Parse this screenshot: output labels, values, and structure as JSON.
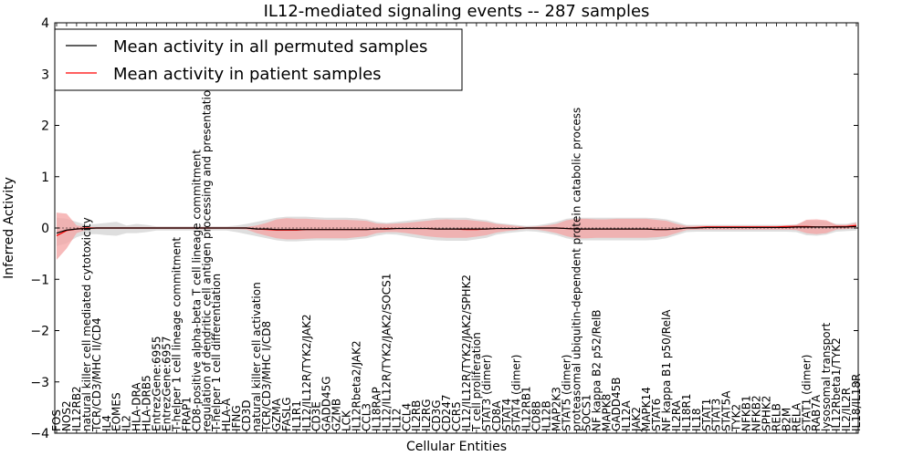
{
  "chart_data": {
    "type": "line",
    "title": "IL12-mediated signaling events -- 287 samples",
    "xlabel": "Cellular Entities",
    "ylabel": "Inferred Activity",
    "ylim": [
      -4,
      4
    ],
    "yticks": [
      -4,
      -3,
      -2,
      -1,
      0,
      1,
      2,
      3,
      4
    ],
    "legend": {
      "placement": "top-left",
      "entries": [
        {
          "label": "Mean activity in all permuted samples",
          "color": "#000000"
        },
        {
          "label": "Mean activity in patient samples",
          "color": "#ff0000"
        }
      ]
    },
    "colors": {
      "permuted_line": "#000000",
      "patient_line": "#ff0000",
      "patient_band": "#f4a3a3",
      "permuted_band": "#c8c8c8"
    },
    "categories": [
      "FOS",
      "NOS2",
      "IL12RB2",
      "natural killer cell mediated cytotoxicity",
      "TCR/CD3/MHC II/CD4",
      "IL4",
      "EOMES",
      "IL2",
      "HLA-DRA",
      "HLA-DRB5",
      "EntrezGene:6955",
      "EntrezGene:6957",
      "T-helper 1 cell lineage commitment",
      "FRAP1",
      "CD8-positive alpha-beta T cell lineage commitment",
      "regulation of dendritic cell antigen processing and presentation",
      "T-helper 1 cell differentiation",
      "HLA-A",
      "IFNG",
      "CD3D",
      "natural killer cell activation",
      "TCR/CD3/MHC I/CD8",
      "GZMA",
      "FASLG",
      "IL1R1",
      "IL12/IL12R/TYK2/JAK2",
      "CD3E",
      "GADD45G",
      "GZMB",
      "LCK",
      "IL12Rbeta2/JAK2",
      "CCL3",
      "IL18RAP",
      "IL12/IL12R/TYK2/JAK2/SOCS1",
      "IL12",
      "CCL4",
      "IL2RB",
      "IL2RG",
      "CD3G",
      "CD247",
      "CCR5",
      "IL12/IL12R/TYK2/JAK2/SPHK2",
      "T cell proliferation",
      "STAT3 (dimer)",
      "CD8A",
      "STAT4",
      "STAT4 (dimer)",
      "IL12RB1",
      "CD8B",
      "IL12B",
      "MAP2K3",
      "STAT5 (dimer)",
      "proteasomal ubiquitin-dependent protein catabolic process",
      "SOCS1",
      "NF kappa B2 p52/RelB",
      "MAPK8",
      "GADD45B",
      "IL12A",
      "JAK2",
      "MAPK14",
      "STAT6",
      "NF kappa B1 p50/RelA",
      "IL2RA",
      "IL18R1",
      "IL18",
      "STAT1",
      "STAT3",
      "STAT5A",
      "TYK2",
      "NFKB1",
      "NFKB2",
      "SPHK2",
      "RELB",
      "B2M",
      "RELA",
      "STAT1 (dimer)",
      "RAB7A",
      "lysosomal transport",
      "IL12Rbeta1/TYK2",
      "IL2/IL2R",
      "IL18/IL18R"
    ],
    "series": [
      {
        "name": "Mean activity in patient samples",
        "values": [
          -0.15,
          -0.05,
          -0.02,
          0,
          0,
          0,
          0,
          0,
          0,
          0,
          0,
          0,
          0,
          0,
          0,
          0,
          0,
          0,
          0,
          0,
          -0.02,
          -0.03,
          -0.04,
          -0.04,
          -0.04,
          -0.03,
          -0.03,
          -0.03,
          -0.03,
          -0.03,
          -0.03,
          -0.03,
          -0.02,
          -0.01,
          -0.01,
          -0.01,
          -0.01,
          -0.01,
          -0.02,
          -0.02,
          -0.02,
          -0.03,
          -0.03,
          -0.02,
          -0.01,
          -0.01,
          -0.01,
          0,
          0,
          0,
          0,
          -0.01,
          -0.02,
          -0.02,
          -0.02,
          -0.02,
          -0.02,
          -0.02,
          -0.02,
          -0.02,
          -0.03,
          -0.03,
          -0.02,
          0,
          0.01,
          0.02,
          0.02,
          0.02,
          0.02,
          0.02,
          0.02,
          0.02,
          0.02,
          0.03,
          0.03,
          0.03,
          0.02,
          0.02,
          0.03,
          0.03,
          0.05
        ]
      },
      {
        "name": "Mean activity in all permuted samples",
        "values": [
          -0.1,
          -0.04,
          -0.02,
          -0.01,
          0,
          0,
          0,
          0,
          0,
          0,
          0,
          0,
          0,
          0,
          0,
          0,
          0,
          0,
          0,
          0,
          -0.02,
          -0.02,
          -0.03,
          -0.03,
          -0.03,
          -0.03,
          -0.03,
          -0.03,
          -0.03,
          -0.03,
          -0.03,
          -0.03,
          -0.02,
          -0.02,
          -0.01,
          -0.01,
          -0.01,
          -0.01,
          -0.02,
          -0.02,
          -0.02,
          -0.02,
          -0.02,
          -0.02,
          -0.01,
          -0.01,
          -0.01,
          0,
          0,
          0,
          0,
          -0.01,
          -0.02,
          -0.02,
          -0.02,
          -0.02,
          -0.02,
          -0.02,
          -0.02,
          -0.02,
          -0.03,
          -0.03,
          -0.02,
          0,
          0,
          0.01,
          0.01,
          0.01,
          0.01,
          0.01,
          0.01,
          0.01,
          0.01,
          0.01,
          0.02,
          0.02,
          0.02,
          0.02,
          0.02,
          0.02,
          0.03
        ]
      }
    ],
    "patient_band": {
      "upper": [
        0.3,
        0.28,
        0.05,
        0.02,
        0.02,
        0.02,
        0.02,
        0.02,
        0.02,
        0.02,
        0.02,
        0.02,
        0.02,
        0.02,
        0.02,
        0.02,
        0.02,
        0.02,
        0.02,
        0.02,
        0.05,
        0.1,
        0.17,
        0.19,
        0.18,
        0.18,
        0.17,
        0.16,
        0.16,
        0.16,
        0.15,
        0.14,
        0.09,
        0.08,
        0.09,
        0.1,
        0.12,
        0.14,
        0.16,
        0.17,
        0.16,
        0.16,
        0.14,
        0.12,
        0.08,
        0.06,
        0.04,
        0.02,
        0.03,
        0.05,
        0.08,
        0.15,
        0.18,
        0.18,
        0.17,
        0.17,
        0.18,
        0.18,
        0.18,
        0.18,
        0.16,
        0.14,
        0.08,
        0.04,
        0.04,
        0.04,
        0.04,
        0.04,
        0.04,
        0.04,
        0.04,
        0.04,
        0.04,
        0.05,
        0.06,
        0.16,
        0.17,
        0.15,
        0.06,
        0.06,
        0.1
      ],
      "lower": [
        -0.62,
        -0.4,
        -0.1,
        -0.03,
        -0.02,
        -0.02,
        -0.02,
        -0.02,
        -0.02,
        -0.02,
        -0.02,
        -0.02,
        -0.02,
        -0.02,
        -0.02,
        -0.02,
        -0.02,
        -0.02,
        -0.02,
        -0.03,
        -0.1,
        -0.15,
        -0.2,
        -0.22,
        -0.22,
        -0.21,
        -0.2,
        -0.2,
        -0.2,
        -0.2,
        -0.18,
        -0.16,
        -0.1,
        -0.08,
        -0.08,
        -0.1,
        -0.13,
        -0.16,
        -0.18,
        -0.19,
        -0.19,
        -0.19,
        -0.17,
        -0.14,
        -0.09,
        -0.06,
        -0.04,
        -0.02,
        -0.03,
        -0.06,
        -0.1,
        -0.16,
        -0.2,
        -0.2,
        -0.19,
        -0.19,
        -0.19,
        -0.19,
        -0.19,
        -0.19,
        -0.18,
        -0.16,
        -0.1,
        -0.04,
        -0.03,
        -0.03,
        -0.03,
        -0.03,
        -0.03,
        -0.03,
        -0.03,
        -0.03,
        -0.03,
        -0.03,
        -0.04,
        -0.1,
        -0.12,
        -0.1,
        -0.03,
        -0.02,
        0
      ]
    },
    "permuted_band": {
      "upper": [
        0.2,
        0.18,
        0.12,
        0.06,
        0.08,
        0.1,
        0.12,
        0.05,
        0.08,
        0.06,
        0.03,
        0.03,
        0.03,
        0.03,
        0.03,
        0.03,
        0.03,
        0.03,
        0.05,
        0.08,
        0.12,
        0.16,
        0.2,
        0.22,
        0.22,
        0.22,
        0.21,
        0.2,
        0.2,
        0.2,
        0.19,
        0.17,
        0.12,
        0.1,
        0.12,
        0.14,
        0.16,
        0.18,
        0.2,
        0.2,
        0.2,
        0.2,
        0.17,
        0.15,
        0.1,
        0.08,
        0.06,
        0.04,
        0.05,
        0.08,
        0.12,
        0.18,
        0.2,
        0.2,
        0.2,
        0.2,
        0.2,
        0.2,
        0.2,
        0.2,
        0.19,
        0.17,
        0.12,
        0.06,
        0.06,
        0.06,
        0.06,
        0.06,
        0.06,
        0.06,
        0.06,
        0.06,
        0.06,
        0.06,
        0.07,
        0.14,
        0.14,
        0.13,
        0.08,
        0.08,
        0.12
      ],
      "lower": [
        -0.35,
        -0.3,
        -0.18,
        -0.12,
        -0.12,
        -0.14,
        -0.15,
        -0.1,
        -0.1,
        -0.08,
        -0.05,
        -0.05,
        -0.05,
        -0.05,
        -0.05,
        -0.05,
        -0.05,
        -0.05,
        -0.08,
        -0.12,
        -0.16,
        -0.2,
        -0.24,
        -0.26,
        -0.26,
        -0.25,
        -0.24,
        -0.24,
        -0.24,
        -0.24,
        -0.22,
        -0.2,
        -0.15,
        -0.12,
        -0.13,
        -0.16,
        -0.19,
        -0.22,
        -0.24,
        -0.25,
        -0.25,
        -0.25,
        -0.22,
        -0.19,
        -0.13,
        -0.1,
        -0.08,
        -0.06,
        -0.07,
        -0.1,
        -0.14,
        -0.2,
        -0.24,
        -0.24,
        -0.24,
        -0.24,
        -0.24,
        -0.24,
        -0.24,
        -0.24,
        -0.23,
        -0.2,
        -0.14,
        -0.08,
        -0.07,
        -0.07,
        -0.07,
        -0.07,
        -0.07,
        -0.07,
        -0.07,
        -0.07,
        -0.07,
        -0.07,
        -0.08,
        -0.14,
        -0.15,
        -0.13,
        -0.07,
        -0.06,
        -0.05
      ]
    }
  }
}
